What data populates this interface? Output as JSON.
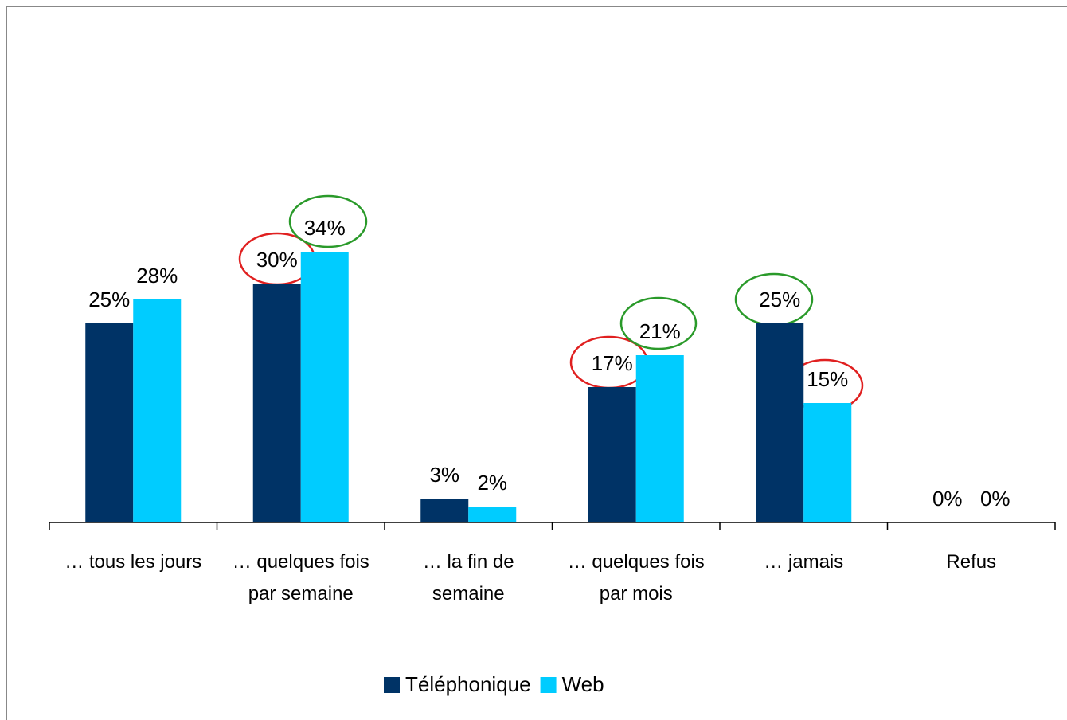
{
  "chart_data": {
    "type": "bar",
    "categories": [
      "… tous les jours",
      "… quelques fois par semaine",
      "… la fin de semaine",
      "… quelques fois par mois",
      "… jamais",
      "Refus"
    ],
    "series": [
      {
        "name": "Téléphonique",
        "color": "#003366",
        "values": [
          25,
          30,
          3,
          17,
          25,
          0
        ],
        "value_labels": [
          "25%",
          "30%",
          "3%",
          "17%",
          "25%",
          "0%"
        ]
      },
      {
        "name": "Web",
        "color": "#00ccff",
        "values": [
          28,
          34,
          2,
          21,
          15,
          0
        ],
        "value_labels": [
          "28%",
          "34%",
          "2%",
          "21%",
          "15%",
          "0%"
        ]
      }
    ],
    "ylim": [
      0,
      40
    ],
    "legend": "bottom"
  }
}
